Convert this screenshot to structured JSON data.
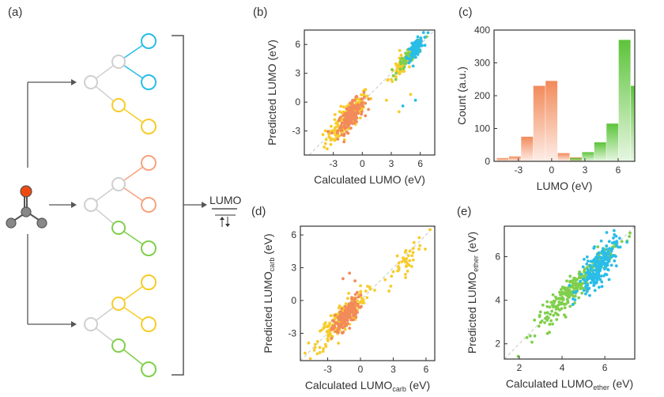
{
  "panel_labels": [
    "(a)",
    "(b)",
    "(c)",
    "(d)",
    "(e)"
  ],
  "schematic": {
    "output_label": "LUMO",
    "colors": {
      "blue": "#29bde8",
      "orange": "#f5a47e",
      "yellow": "#f7cc2a",
      "green": "#7fcf4b",
      "gray": "#cfcfcf",
      "molecule_atom": "#888888",
      "oxygen": "#ee4a10"
    }
  },
  "chart_data": [
    {
      "id": "b",
      "type": "scatter",
      "title": "",
      "xlabel": "Calculated LUMO (eV)",
      "ylabel": "Predicted LUMO (eV)",
      "xlim": [
        -6,
        7.5
      ],
      "ylim": [
        -5.5,
        7.5
      ],
      "xticks": [
        -3,
        0,
        3,
        6
      ],
      "yticks": [
        -3,
        0,
        3,
        6
      ],
      "diagonal": true,
      "series": [
        {
          "name": "yellow",
          "color": "#f7cc2a",
          "n": 170,
          "center": [
            -1.5,
            -1.6
          ],
          "spread": 1.5,
          "noise": 0.75,
          "outliers": [
            [
              2.5,
              0.2
            ],
            [
              3.8,
              -1.0
            ],
            [
              5.0,
              0.8
            ]
          ]
        },
        {
          "name": "orange",
          "color": "#f28a5a",
          "n": 160,
          "center": [
            -1.2,
            -1.4
          ],
          "spread": 0.9,
          "noise": 0.6
        },
        {
          "name": "yellow-high",
          "color": "#f7cc2a",
          "n": 70,
          "center": [
            4.2,
            3.9
          ],
          "spread": 1.0,
          "noise": 0.55
        },
        {
          "name": "green",
          "color": "#7fcf4b",
          "n": 70,
          "center": [
            5.0,
            4.9
          ],
          "spread": 0.9,
          "noise": 0.4
        },
        {
          "name": "blue",
          "color": "#29bde8",
          "n": 120,
          "center": [
            5.5,
            5.6
          ],
          "spread": 0.55,
          "noise": 0.4,
          "outliers": [
            [
              5.5,
              0.2
            ],
            [
              4.2,
              -0.4
            ]
          ]
        }
      ]
    },
    {
      "id": "c",
      "type": "bar",
      "xlabel": "LUMO (eV)",
      "ylabel": "Count (a.u.)",
      "xlim": [
        -5.2,
        7.5
      ],
      "ylim": [
        0,
        400
      ],
      "xticks": [
        -3,
        0,
        3,
        6
      ],
      "yticks": [
        0,
        100,
        200,
        300,
        400
      ],
      "bin_width": 1.1,
      "series": [
        {
          "name": "orange",
          "color": "#f28a5a",
          "bins": [
            {
              "x": -4.4,
              "value": 10
            },
            {
              "x": -3.3,
              "value": 15
            },
            {
              "x": -2.2,
              "value": 75
            },
            {
              "x": -1.1,
              "value": 230
            },
            {
              "x": 0.0,
              "value": 245
            },
            {
              "x": 1.1,
              "value": 25
            },
            {
              "x": 2.2,
              "value": 12
            }
          ]
        },
        {
          "name": "green",
          "color": "#5cc43a",
          "bins": [
            {
              "x": 2.2,
              "value": 10
            },
            {
              "x": 3.3,
              "value": 28
            },
            {
              "x": 4.4,
              "value": 58
            },
            {
              "x": 5.5,
              "value": 115
            },
            {
              "x": 6.6,
              "value": 370
            },
            {
              "x": 7.7,
              "value": 230
            }
          ]
        }
      ]
    },
    {
      "id": "d",
      "type": "scatter",
      "xlabel": "Calculated LUMO",
      "xlabel_sub": "carb",
      "xlabel_unit": " (eV)",
      "ylabel": "Predicted LUMO",
      "ylabel_sub": "carb",
      "ylabel_unit": " (eV)",
      "xlim": [
        -5.5,
        6.8
      ],
      "ylim": [
        -5.5,
        6.8
      ],
      "xticks": [
        -3,
        0,
        3,
        6
      ],
      "yticks": [
        -3,
        0,
        3,
        6
      ],
      "diagonal": true,
      "series": [
        {
          "name": "yellow",
          "color": "#f7cc2a",
          "n": 190,
          "center": [
            -1.8,
            -1.7
          ],
          "spread": 1.5,
          "noise": 0.7
        },
        {
          "name": "orange",
          "color": "#f28a5a",
          "n": 170,
          "center": [
            -1.3,
            -1.4
          ],
          "spread": 0.8,
          "noise": 0.55,
          "outliers": [
            [
              -1.0,
              2.5
            ],
            [
              -0.5,
              1.8
            ],
            [
              -1.6,
              2.0
            ]
          ]
        },
        {
          "name": "yellow-high",
          "color": "#f7cc2a",
          "n": 45,
          "center": [
            4.0,
            3.4
          ],
          "spread": 1.2,
          "noise": 0.6
        }
      ]
    },
    {
      "id": "e",
      "type": "scatter",
      "xlabel": "Calculated LUMO",
      "xlabel_sub": "ether",
      "xlabel_unit": " (eV)",
      "ylabel": "Predicted LUMO",
      "ylabel_sub": "ether",
      "ylabel_unit": " (eV)",
      "xlim": [
        1.3,
        7.4
      ],
      "ylim": [
        1.3,
        7.4
      ],
      "xticks": [
        2,
        4,
        6
      ],
      "yticks": [
        2,
        4,
        6
      ],
      "diagonal": true,
      "series": [
        {
          "name": "green",
          "color": "#7fcf4b",
          "n": 250,
          "center": [
            4.6,
            4.6
          ],
          "spread": 1.25,
          "noise": 0.3
        },
        {
          "name": "blue",
          "color": "#29bde8",
          "n": 200,
          "center": [
            5.7,
            5.5
          ],
          "spread": 0.6,
          "noise": 0.42
        }
      ]
    }
  ]
}
